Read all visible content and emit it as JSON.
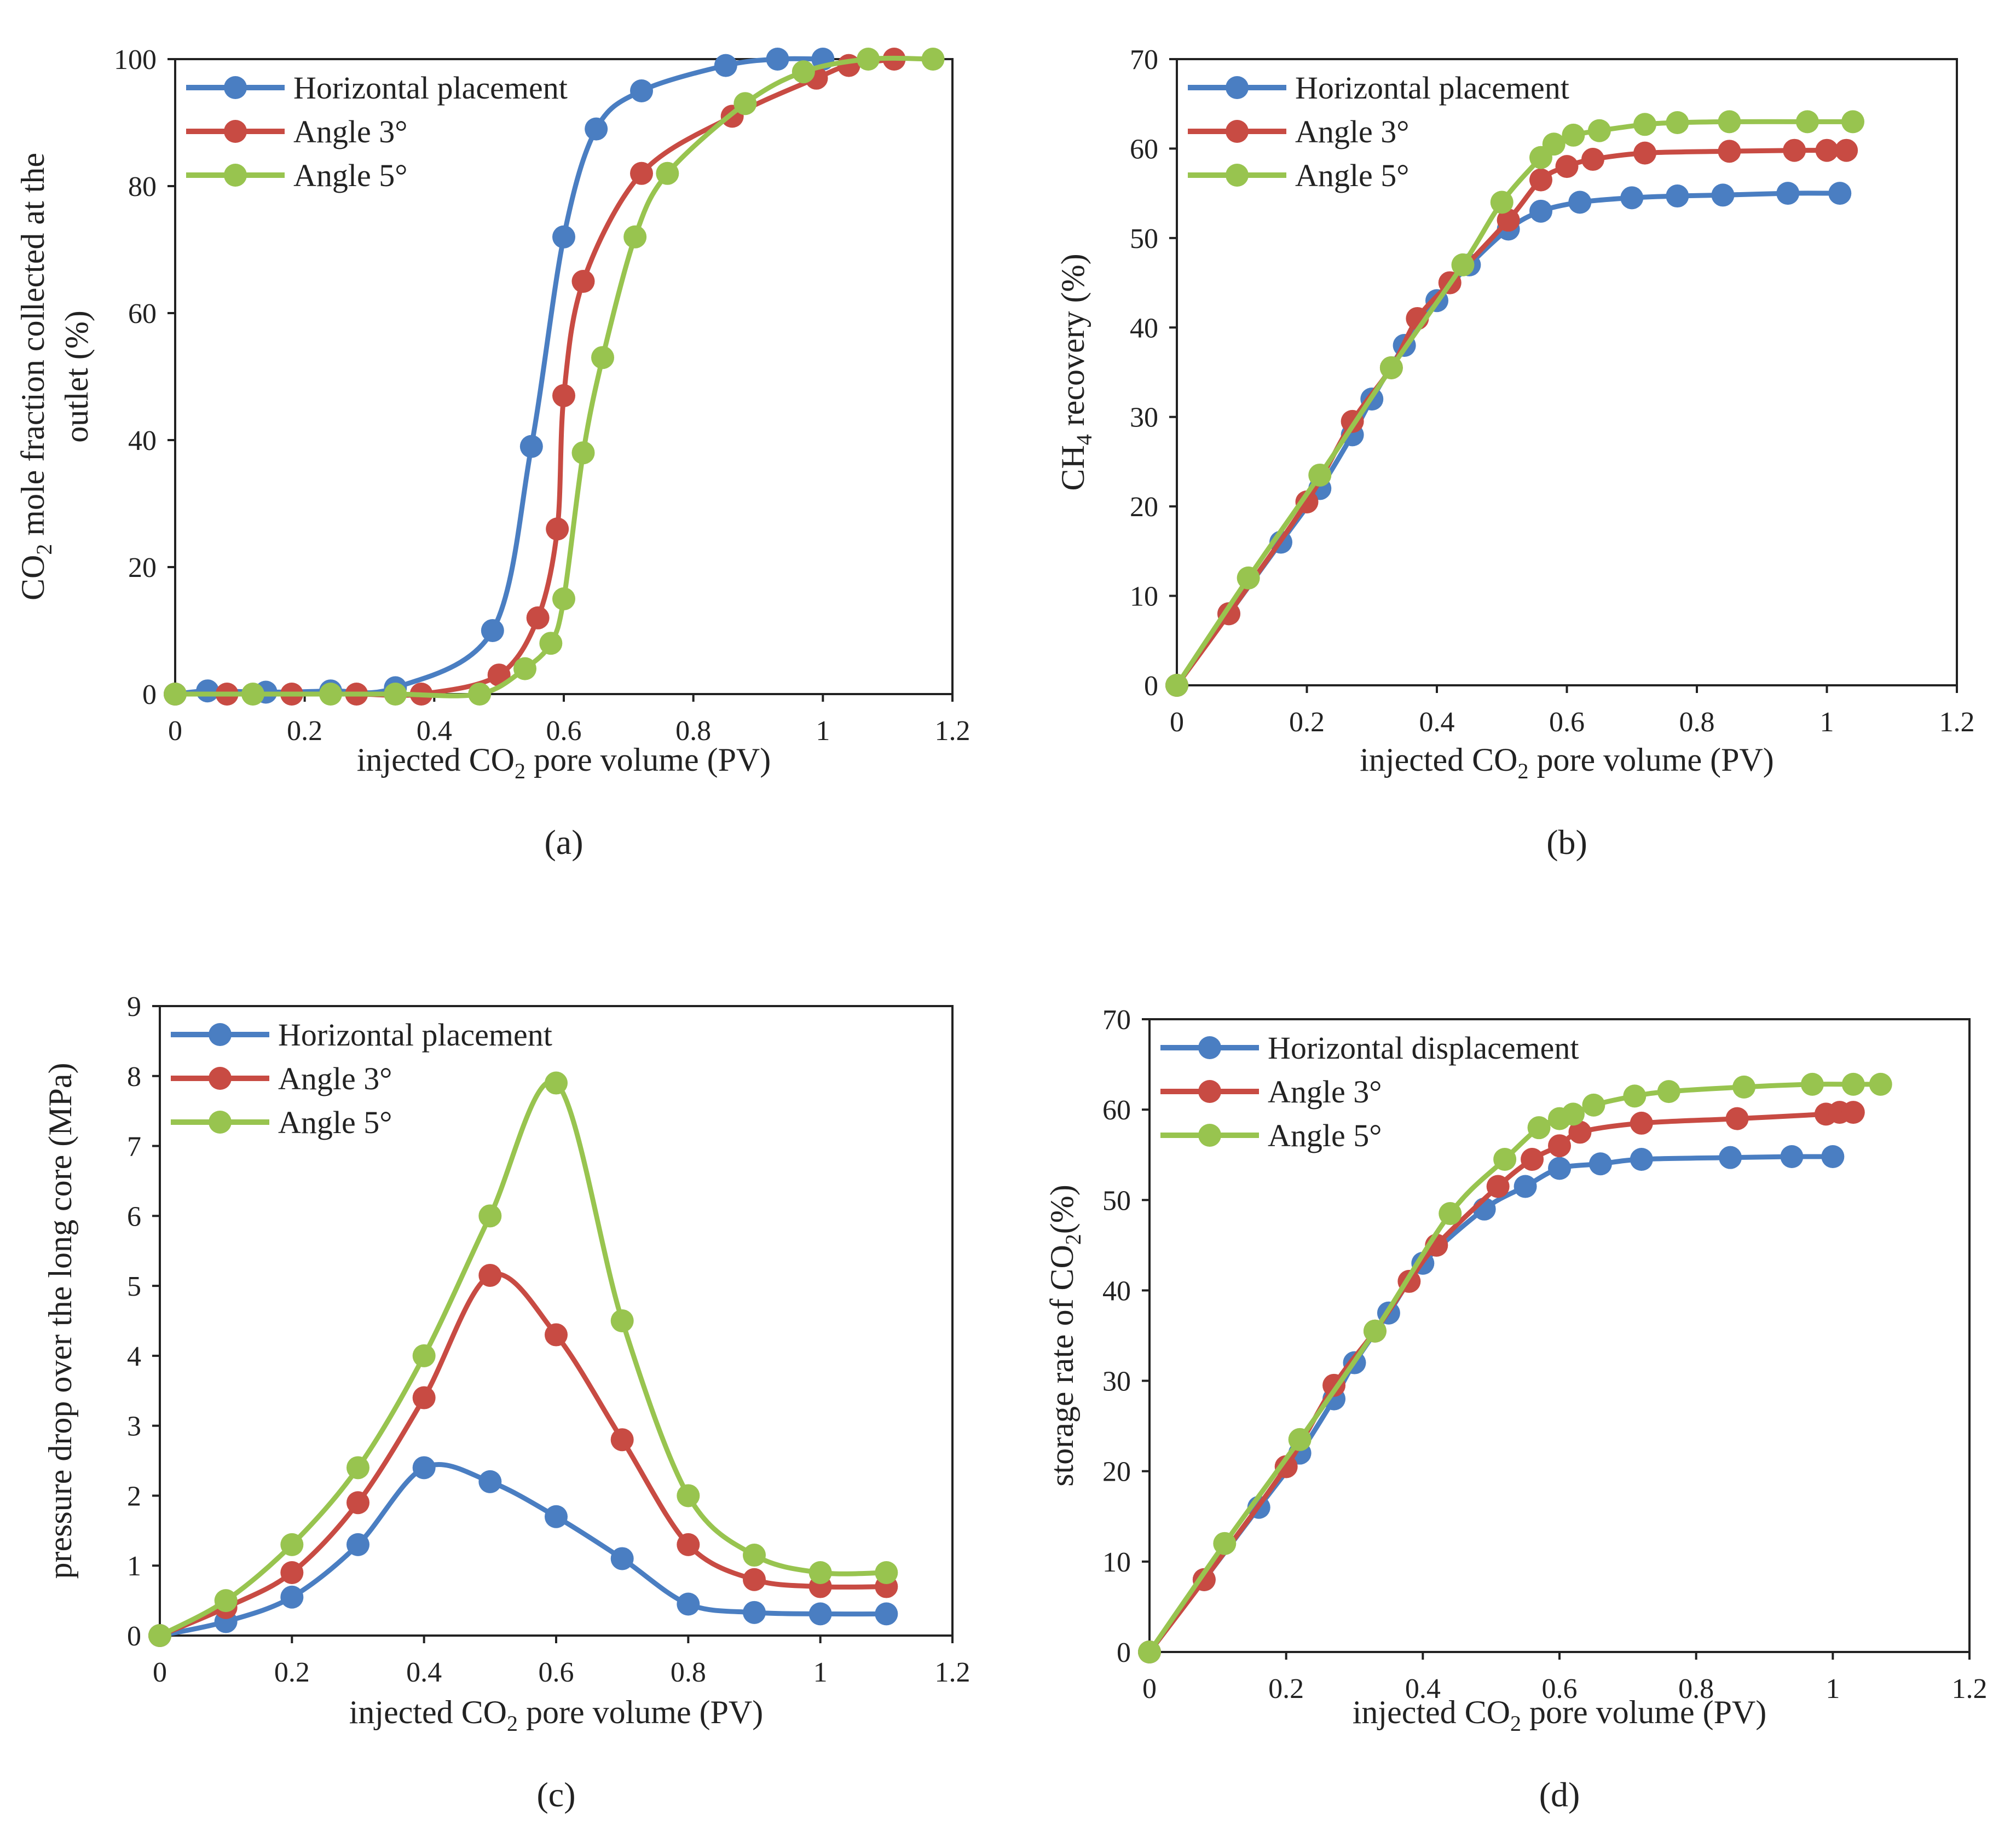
{
  "colors": {
    "blue": "#4a7ec2",
    "red": "#c84b43",
    "green": "#98c44f"
  },
  "chart_data": [
    {
      "id": "a",
      "panel_label": "(a)",
      "type": "line",
      "xlabel_pre": "injected CO",
      "xlabel_sub": "2",
      "xlabel_post": " pore volume (PV)",
      "ylabel_line1_pre": "CO",
      "ylabel_line1_sub": "2",
      "ylabel_line1_post": " mole fraction collected at the",
      "ylabel_line2": "outlet (%)",
      "xlim": [
        0,
        1.2
      ],
      "ylim": [
        0,
        100
      ],
      "xticks": [
        0,
        0.2,
        0.4,
        0.6,
        0.8,
        1,
        1.2
      ],
      "xtick_labels": [
        "0",
        "0.2",
        "0.4",
        "0.6",
        "0.8",
        "1",
        "1.2"
      ],
      "yticks": [
        0,
        20,
        40,
        60,
        80,
        100
      ],
      "ytick_labels": [
        "0",
        "20",
        "40",
        "60",
        "80",
        "100"
      ],
      "legend": "top-left",
      "series": [
        {
          "name": "Horizontal placement",
          "color": "blue",
          "x": [
            0,
            0.05,
            0.14,
            0.24,
            0.34,
            0.49,
            0.55,
            0.6,
            0.65,
            0.72,
            0.85,
            0.93,
            1.0
          ],
          "y": [
            0,
            0.5,
            0.3,
            0.5,
            1,
            10,
            39,
            72,
            89,
            95,
            99,
            100,
            100
          ]
        },
        {
          "name": "Angle 3°",
          "color": "red",
          "x": [
            0,
            0.08,
            0.18,
            0.28,
            0.38,
            0.5,
            0.56,
            0.59,
            0.6,
            0.63,
            0.72,
            0.86,
            0.99,
            1.04,
            1.11
          ],
          "y": [
            0,
            0,
            0,
            0,
            0,
            3,
            12,
            26,
            47,
            65,
            82,
            91,
            97,
            99,
            100
          ]
        },
        {
          "name": "Angle 5°",
          "color": "green",
          "x": [
            0,
            0.12,
            0.24,
            0.34,
            0.47,
            0.54,
            0.58,
            0.6,
            0.63,
            0.66,
            0.71,
            0.76,
            0.88,
            0.97,
            1.07,
            1.17
          ],
          "y": [
            0,
            0,
            0,
            0,
            0,
            4,
            8,
            15,
            38,
            53,
            72,
            82,
            93,
            98,
            100,
            100
          ]
        }
      ]
    },
    {
      "id": "b",
      "panel_label": "(b)",
      "type": "line",
      "xlabel_pre": "injected CO",
      "xlabel_sub": "2",
      "xlabel_post": " pore volume (PV)",
      "ylabel_line1_pre": "CH",
      "ylabel_line1_sub": "4",
      "ylabel_line1_post": " recovery (%)",
      "ylabel_line2": "",
      "xlim": [
        0,
        1.2
      ],
      "ylim": [
        0,
        70
      ],
      "xticks": [
        0,
        0.2,
        0.4,
        0.6,
        0.8,
        1,
        1.2
      ],
      "xtick_labels": [
        "0",
        "0.2",
        "0.4",
        "0.6",
        "0.8",
        "1",
        "1.2"
      ],
      "yticks": [
        0,
        10,
        20,
        30,
        40,
        50,
        60,
        70
      ],
      "ytick_labels": [
        "0",
        "10",
        "20",
        "30",
        "40",
        "50",
        "60",
        "70"
      ],
      "legend": "top-left",
      "series": [
        {
          "name": "Horizontal placement",
          "color": "blue",
          "x": [
            0,
            0.08,
            0.16,
            0.22,
            0.27,
            0.3,
            0.35,
            0.4,
            0.45,
            0.51,
            0.56,
            0.62,
            0.7,
            0.77,
            0.84,
            0.94,
            1.02
          ],
          "y": [
            0,
            8,
            16,
            22,
            28,
            32,
            38,
            43,
            47,
            51,
            53,
            54,
            54.5,
            54.7,
            54.8,
            55,
            55
          ]
        },
        {
          "name": "Angle 3°",
          "color": "red",
          "x": [
            0,
            0.08,
            0.2,
            0.27,
            0.33,
            0.37,
            0.42,
            0.51,
            0.56,
            0.6,
            0.64,
            0.72,
            0.85,
            0.95,
            1.0,
            1.03
          ],
          "y": [
            0,
            8,
            20.5,
            29.5,
            35.5,
            41,
            45,
            52,
            56.5,
            58,
            58.8,
            59.5,
            59.7,
            59.8,
            59.8,
            59.8
          ]
        },
        {
          "name": "Angle 5°",
          "color": "green",
          "x": [
            0,
            0.11,
            0.22,
            0.33,
            0.44,
            0.5,
            0.56,
            0.58,
            0.61,
            0.65,
            0.72,
            0.77,
            0.85,
            0.97,
            1.04
          ],
          "y": [
            0,
            12,
            23.5,
            35.5,
            47,
            54,
            59,
            60.5,
            61.5,
            62,
            62.7,
            62.9,
            63,
            63,
            63
          ]
        }
      ]
    },
    {
      "id": "c",
      "panel_label": "(c)",
      "type": "line",
      "xlabel_pre": "injected CO",
      "xlabel_sub": "2",
      "xlabel_post": " pore volume (PV)",
      "ylabel_line1_pre": "pressure  drop over the long core (MPa)",
      "ylabel_line1_sub": "",
      "ylabel_line1_post": "",
      "ylabel_line2": "",
      "xlim": [
        0,
        1.2
      ],
      "ylim": [
        0,
        9
      ],
      "xticks": [
        0,
        0.2,
        0.4,
        0.6,
        0.8,
        1,
        1.2
      ],
      "xtick_labels": [
        "0",
        "0.2",
        "0.4",
        "0.6",
        "0.8",
        "1",
        "1.2"
      ],
      "yticks": [
        0,
        1,
        2,
        3,
        4,
        5,
        6,
        7,
        8,
        9
      ],
      "ytick_labels": [
        "0",
        "1",
        "2",
        "3",
        "4",
        "5",
        "6",
        "7",
        "8",
        "9"
      ],
      "legend": "top-left",
      "series": [
        {
          "name": "Horizontal placement",
          "color": "blue",
          "x": [
            0,
            0.1,
            0.2,
            0.3,
            0.4,
            0.5,
            0.6,
            0.7,
            0.8,
            0.9,
            1.0,
            1.1
          ],
          "y": [
            0,
            0.2,
            0.55,
            1.3,
            2.4,
            2.2,
            1.7,
            1.1,
            0.45,
            0.33,
            0.31,
            0.31
          ]
        },
        {
          "name": "Angle 3°",
          "color": "red",
          "x": [
            0,
            0.1,
            0.2,
            0.3,
            0.4,
            0.5,
            0.6,
            0.7,
            0.8,
            0.9,
            1.0,
            1.1
          ],
          "y": [
            0,
            0.4,
            0.9,
            1.9,
            3.4,
            5.15,
            4.3,
            2.8,
            1.3,
            0.8,
            0.7,
            0.7
          ]
        },
        {
          "name": "Angle 5°",
          "color": "green",
          "x": [
            0,
            0.1,
            0.2,
            0.3,
            0.4,
            0.5,
            0.6,
            0.7,
            0.8,
            0.9,
            1.0,
            1.1
          ],
          "y": [
            0,
            0.5,
            1.3,
            2.4,
            4.0,
            6.0,
            7.9,
            4.5,
            2.0,
            1.15,
            0.9,
            0.9
          ]
        }
      ]
    },
    {
      "id": "d",
      "panel_label": "(d)",
      "type": "line",
      "xlabel_pre": "injected CO",
      "xlabel_sub": "2",
      "xlabel_post": " pore volume (PV)",
      "ylabel_line1_pre": "storage rate of CO",
      "ylabel_line1_sub": "2",
      "ylabel_line1_post": "(%)",
      "ylabel_line2": "",
      "xlim": [
        0,
        1.2
      ],
      "ylim": [
        0,
        70
      ],
      "xticks": [
        0,
        0.2,
        0.4,
        0.6,
        0.8,
        1,
        1.2
      ],
      "xtick_labels": [
        "0",
        "0.2",
        "0.4",
        "0.6",
        "0.8",
        "1",
        "1.2"
      ],
      "yticks": [
        0,
        10,
        20,
        30,
        40,
        50,
        60,
        70
      ],
      "ytick_labels": [
        "0",
        "10",
        "20",
        "30",
        "40",
        "50",
        "60",
        "70"
      ],
      "legend": "top-left",
      "series": [
        {
          "name": "Horizontal displacement",
          "color": "blue",
          "x": [
            0,
            0.08,
            0.16,
            0.22,
            0.27,
            0.3,
            0.35,
            0.4,
            0.49,
            0.55,
            0.6,
            0.66,
            0.72,
            0.85,
            0.94,
            1.0
          ],
          "y": [
            0,
            8,
            16,
            22,
            28,
            32,
            37.5,
            43,
            49,
            51.5,
            53.5,
            54,
            54.5,
            54.7,
            54.8,
            54.8
          ]
        },
        {
          "name": "Angle 3°",
          "color": "red",
          "x": [
            0,
            0.08,
            0.2,
            0.27,
            0.33,
            0.38,
            0.42,
            0.51,
            0.56,
            0.6,
            0.63,
            0.72,
            0.86,
            0.99,
            1.01,
            1.03
          ],
          "y": [
            0,
            8,
            20.5,
            29.5,
            35.5,
            41,
            45,
            51.5,
            54.5,
            56,
            57.5,
            58.5,
            59,
            59.5,
            59.7,
            59.7
          ]
        },
        {
          "name": "Angle 5°",
          "color": "green",
          "x": [
            0,
            0.11,
            0.22,
            0.33,
            0.44,
            0.52,
            0.57,
            0.6,
            0.62,
            0.65,
            0.71,
            0.76,
            0.87,
            0.97,
            1.03,
            1.07
          ],
          "y": [
            0,
            12,
            23.5,
            35.5,
            48.5,
            54.5,
            58,
            59,
            59.5,
            60.5,
            61.5,
            62,
            62.5,
            62.8,
            62.8,
            62.8
          ]
        }
      ]
    }
  ]
}
